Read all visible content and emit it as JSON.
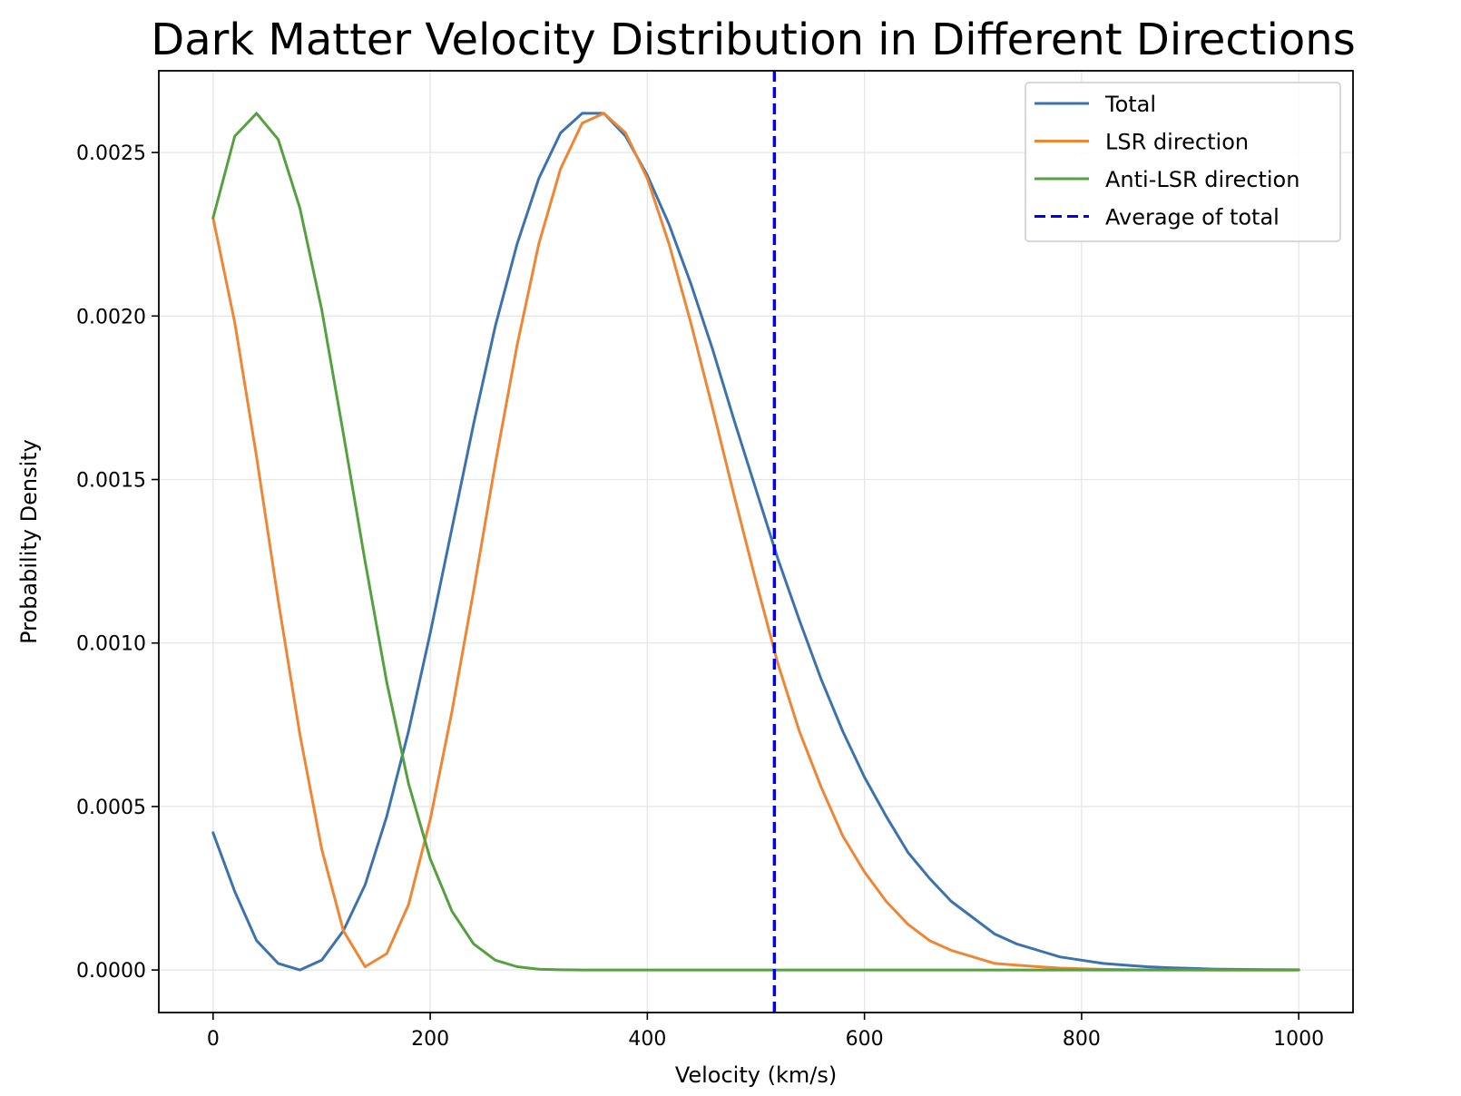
{
  "chart_data": {
    "type": "line",
    "title": "Dark Matter Velocity Distribution in Different Directions",
    "xlabel": "Velocity (km/s)",
    "ylabel": "Probability Density",
    "xlim": [
      -50,
      1050
    ],
    "ylim": [
      -0.00013,
      0.00275
    ],
    "xticks": [
      0,
      200,
      400,
      600,
      800,
      1000
    ],
    "xtick_labels": [
      "0",
      "200",
      "400",
      "600",
      "800",
      "1000"
    ],
    "yticks": [
      0,
      0.0005,
      0.001,
      0.0015,
      0.002,
      0.0025
    ],
    "ytick_labels": [
      "0.0000",
      "0.0005",
      "0.0010",
      "0.0015",
      "0.0020",
      "0.0025"
    ],
    "grid": true,
    "legend_position": "top-right",
    "x": [
      0,
      20,
      40,
      60,
      80,
      100,
      120,
      140,
      160,
      180,
      200,
      220,
      240,
      260,
      280,
      300,
      320,
      340,
      360,
      380,
      400,
      420,
      440,
      460,
      480,
      500,
      520,
      540,
      560,
      580,
      600,
      620,
      640,
      660,
      680,
      700,
      720,
      740,
      760,
      780,
      800,
      820,
      840,
      860,
      880,
      900,
      920,
      940,
      960,
      980,
      1000
    ],
    "series": [
      {
        "name": "Total",
        "color": "#3c73ae",
        "values": [
          0.00042,
          0.00024,
          9e-05,
          2e-05,
          0.0,
          3e-05,
          0.00012,
          0.00026,
          0.00047,
          0.00073,
          0.00103,
          0.00135,
          0.00167,
          0.00197,
          0.00222,
          0.00242,
          0.00256,
          0.00262,
          0.00262,
          0.00255,
          0.00243,
          0.00228,
          0.0021,
          0.0019,
          0.00168,
          0.00147,
          0.00126,
          0.00107,
          0.00089,
          0.00073,
          0.00059,
          0.00047,
          0.00036,
          0.00028,
          0.00021,
          0.00016,
          0.00011,
          8e-05,
          6e-05,
          4e-05,
          3e-05,
          2e-05,
          1.5e-05,
          1e-05,
          7e-06,
          5e-06,
          3e-06,
          2e-06,
          1.5e-06,
          1e-06,
          8e-07
        ]
      },
      {
        "name": "LSR direction",
        "color": "#ee8634",
        "values": [
          0.0023,
          0.00198,
          0.00157,
          0.00113,
          0.00072,
          0.00037,
          0.00012,
          1e-05,
          5e-05,
          0.0002,
          0.00046,
          0.00079,
          0.00116,
          0.00155,
          0.00191,
          0.00222,
          0.00245,
          0.00259,
          0.00262,
          0.00256,
          0.00242,
          0.00222,
          0.00198,
          0.00172,
          0.00145,
          0.00119,
          0.00094,
          0.00073,
          0.00056,
          0.00041,
          0.0003,
          0.00021,
          0.00014,
          9e-05,
          6e-05,
          4e-05,
          2e-05,
          1.5e-05,
          1e-05,
          6e-06,
          4e-06,
          2e-06,
          1e-06,
          8e-07,
          5e-07,
          3e-07,
          2e-07,
          1e-07,
          1e-07,
          1e-07,
          1e-07
        ]
      },
      {
        "name": "Anti-LSR direction",
        "color": "#55a03f",
        "values": [
          0.0023,
          0.00255,
          0.00262,
          0.00254,
          0.00233,
          0.00202,
          0.00164,
          0.00125,
          0.00088,
          0.00057,
          0.00034,
          0.00018,
          8e-05,
          3e-05,
          1e-05,
          2.5e-06,
          6e-07,
          1e-07,
          0.0,
          0.0,
          0.0,
          0.0,
          0.0,
          0.0,
          0.0,
          0.0,
          0.0,
          0.0,
          0.0,
          0.0,
          0.0,
          0.0,
          0.0,
          0.0,
          0.0,
          0.0,
          0.0,
          0.0,
          0.0,
          0.0,
          0.0,
          0.0,
          0.0,
          0.0,
          0.0,
          0.0,
          0.0,
          0.0,
          0.0,
          0.0,
          0.0
        ]
      }
    ],
    "vline": {
      "name": "Average of total",
      "x": 517,
      "color": "#0000ee",
      "style": "dashed"
    }
  }
}
